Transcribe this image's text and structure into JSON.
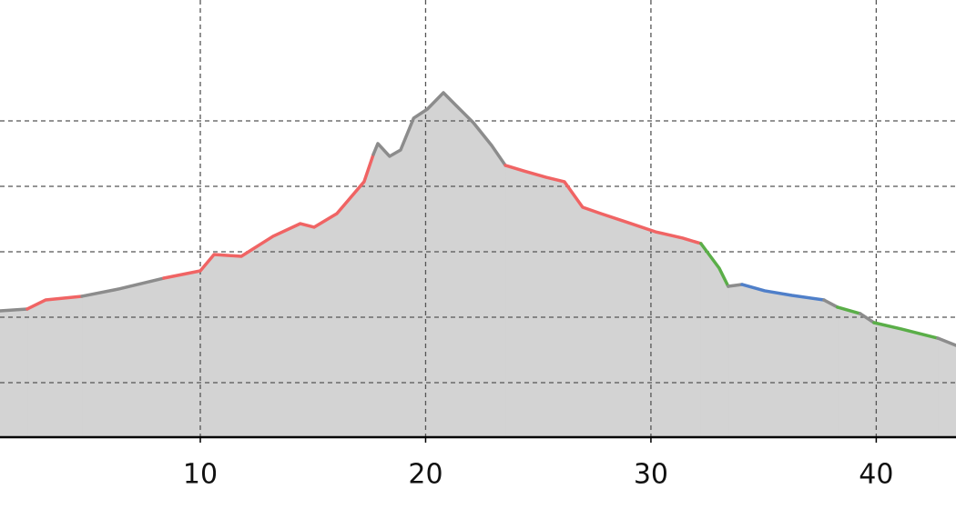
{
  "chart_data": {
    "type": "area",
    "fill": "#d3d3d3",
    "xlim": [
      1.11,
      43.54
    ],
    "xticks": [
      10,
      20,
      30,
      40
    ],
    "ylim": [
      0,
      40.08
    ],
    "yticks": [
      5,
      11,
      17,
      23,
      29
    ],
    "grid": true,
    "series": [
      {
        "color": "#8c8c8c",
        "x": [
          1.11,
          2.32
        ],
        "values": [
          11.58,
          11.75
        ]
      },
      {
        "color": "#f06464",
        "x": [
          2.32,
          3.13,
          4.75
        ],
        "values": [
          11.75,
          12.58,
          12.92
        ]
      },
      {
        "color": "#8c8c8c",
        "x": [
          4.75,
          6.36,
          8.38
        ],
        "values": [
          12.92,
          13.58,
          14.58
        ]
      },
      {
        "color": "#f06464",
        "x": [
          8.38,
          10,
          10.61,
          11.82,
          13.23,
          14.44,
          15.05,
          16.06,
          17.27,
          17.68
        ],
        "values": [
          14.58,
          15.25,
          16.75,
          16.58,
          18.42,
          19.58,
          19.25,
          20.5,
          23.42,
          25.92
        ]
      },
      {
        "color": "#8c8c8c",
        "x": [
          17.68,
          17.88,
          18.4,
          18.89,
          19.47,
          20.08,
          20.79,
          21.31,
          22.12,
          22.93,
          23.54
        ],
        "values": [
          25.92,
          26.92,
          25.75,
          26.33,
          29.25,
          30.08,
          31.58,
          30.5,
          28.83,
          26.75,
          24.92
        ]
      },
      {
        "color": "#f06464",
        "x": [
          23.54,
          24.34,
          25.35,
          26.16,
          26.97,
          27.78,
          28.99,
          30.2,
          31.41,
          32.22
        ],
        "values": [
          24.92,
          24.42,
          23.83,
          23.42,
          21.08,
          20.5,
          19.67,
          18.83,
          18.25,
          17.75
        ]
      },
      {
        "color": "#5aae48",
        "x": [
          32.22,
          33.03,
          33.43
        ],
        "values": [
          17.75,
          15.5,
          13.83
        ]
      },
      {
        "color": "#8c8c8c",
        "x": [
          33.43,
          34.04
        ],
        "values": [
          13.83,
          14.0
        ]
      },
      {
        "color": "#4f7fc9",
        "x": [
          34.04,
          35.05,
          36.26,
          37.68
        ],
        "values": [
          14.0,
          13.42,
          13.0,
          12.58
        ]
      },
      {
        "color": "#8c8c8c",
        "x": [
          37.68,
          38.28
        ],
        "values": [
          12.58,
          11.92
        ]
      },
      {
        "color": "#5aae48",
        "x": [
          38.28,
          39.29
        ],
        "values": [
          11.92,
          11.33
        ]
      },
      {
        "color": "#8c8c8c",
        "x": [
          39.29,
          39.9
        ],
        "values": [
          11.33,
          10.5
        ]
      },
      {
        "color": "#5aae48",
        "x": [
          39.9,
          41.11,
          42.73
        ],
        "values": [
          10.5,
          9.92,
          9.08
        ]
      },
      {
        "color": "#8c8c8c",
        "x": [
          42.73,
          43.54
        ],
        "values": [
          9.08,
          8.42
        ]
      }
    ]
  }
}
